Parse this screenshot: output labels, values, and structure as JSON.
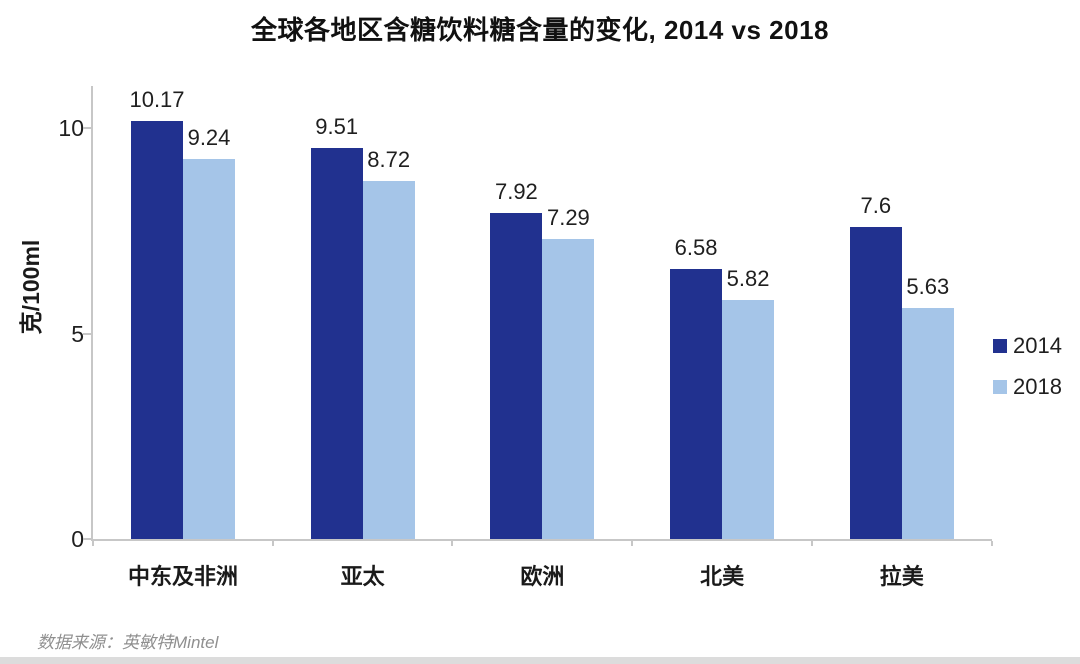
{
  "title": "全球各地区含糖饮料糖含量的变化, 2014 vs 2018",
  "source": "数据来源：英敏特Mintel",
  "chart_data": {
    "type": "bar",
    "title": "全球各地区含糖饮料糖含量的变化, 2014 vs 2018",
    "categories": [
      "中东及非洲",
      "亚太",
      "欧洲",
      "北美",
      "拉美"
    ],
    "series": [
      {
        "name": "2014",
        "color": "#21318F",
        "values": [
          10.17,
          9.51,
          7.92,
          6.58,
          7.6
        ]
      },
      {
        "name": "2018",
        "color": "#A5C5E8",
        "values": [
          9.24,
          8.72,
          7.29,
          5.82,
          5.63
        ]
      }
    ],
    "xlabel": "",
    "ylabel": "克/100ml",
    "yticks": [
      0,
      5,
      10
    ],
    "ylim": [
      0,
      11
    ],
    "grid": false,
    "legend_position": "right",
    "value_labels_shown": true
  },
  "colors": {
    "series_2014": "#21318F",
    "series_2018": "#A5C5E8",
    "axis": "#C7C7C7",
    "text": "#1F1F1F",
    "source_text": "#8F8F8F",
    "footer_strip": "#DCDCDC"
  }
}
